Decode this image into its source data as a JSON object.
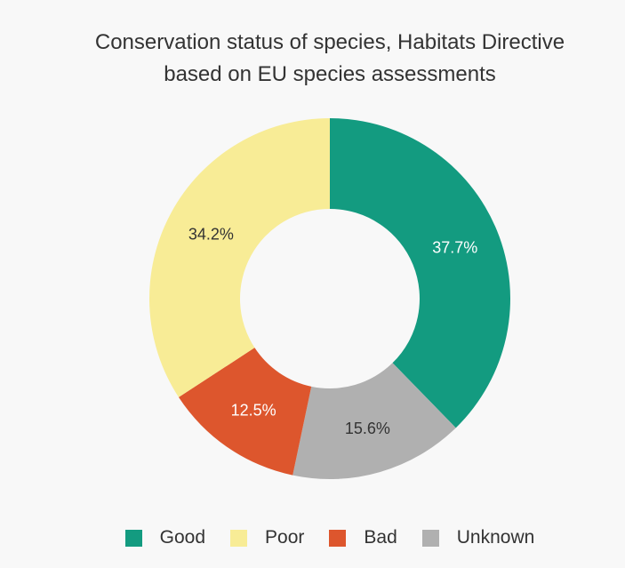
{
  "chart_data": {
    "type": "pie",
    "title_line1": "Conservation status of species, Habitats Directive",
    "title_line2": "based on EU species assessments",
    "categories": [
      "Good",
      "Poor",
      "Bad",
      "Unknown"
    ],
    "values": [
      37.7,
      34.2,
      12.5,
      15.6
    ],
    "labels": {
      "Good": "37.7%",
      "Poor": "34.2%",
      "Bad": "12.5%",
      "Unknown": "15.6%"
    },
    "slice_order_clockwise_from_top": [
      "Good",
      "Unknown",
      "Bad",
      "Poor"
    ],
    "colors": {
      "Good": "#139b80",
      "Poor": "#f8ec96",
      "Bad": "#dd562d",
      "Unknown": "#b0b0b0"
    },
    "label_colors": {
      "Good": "#ffffff",
      "Poor": "#333333",
      "Bad": "#ffffff",
      "Unknown": "#333333"
    },
    "legend_position": "bottom"
  }
}
